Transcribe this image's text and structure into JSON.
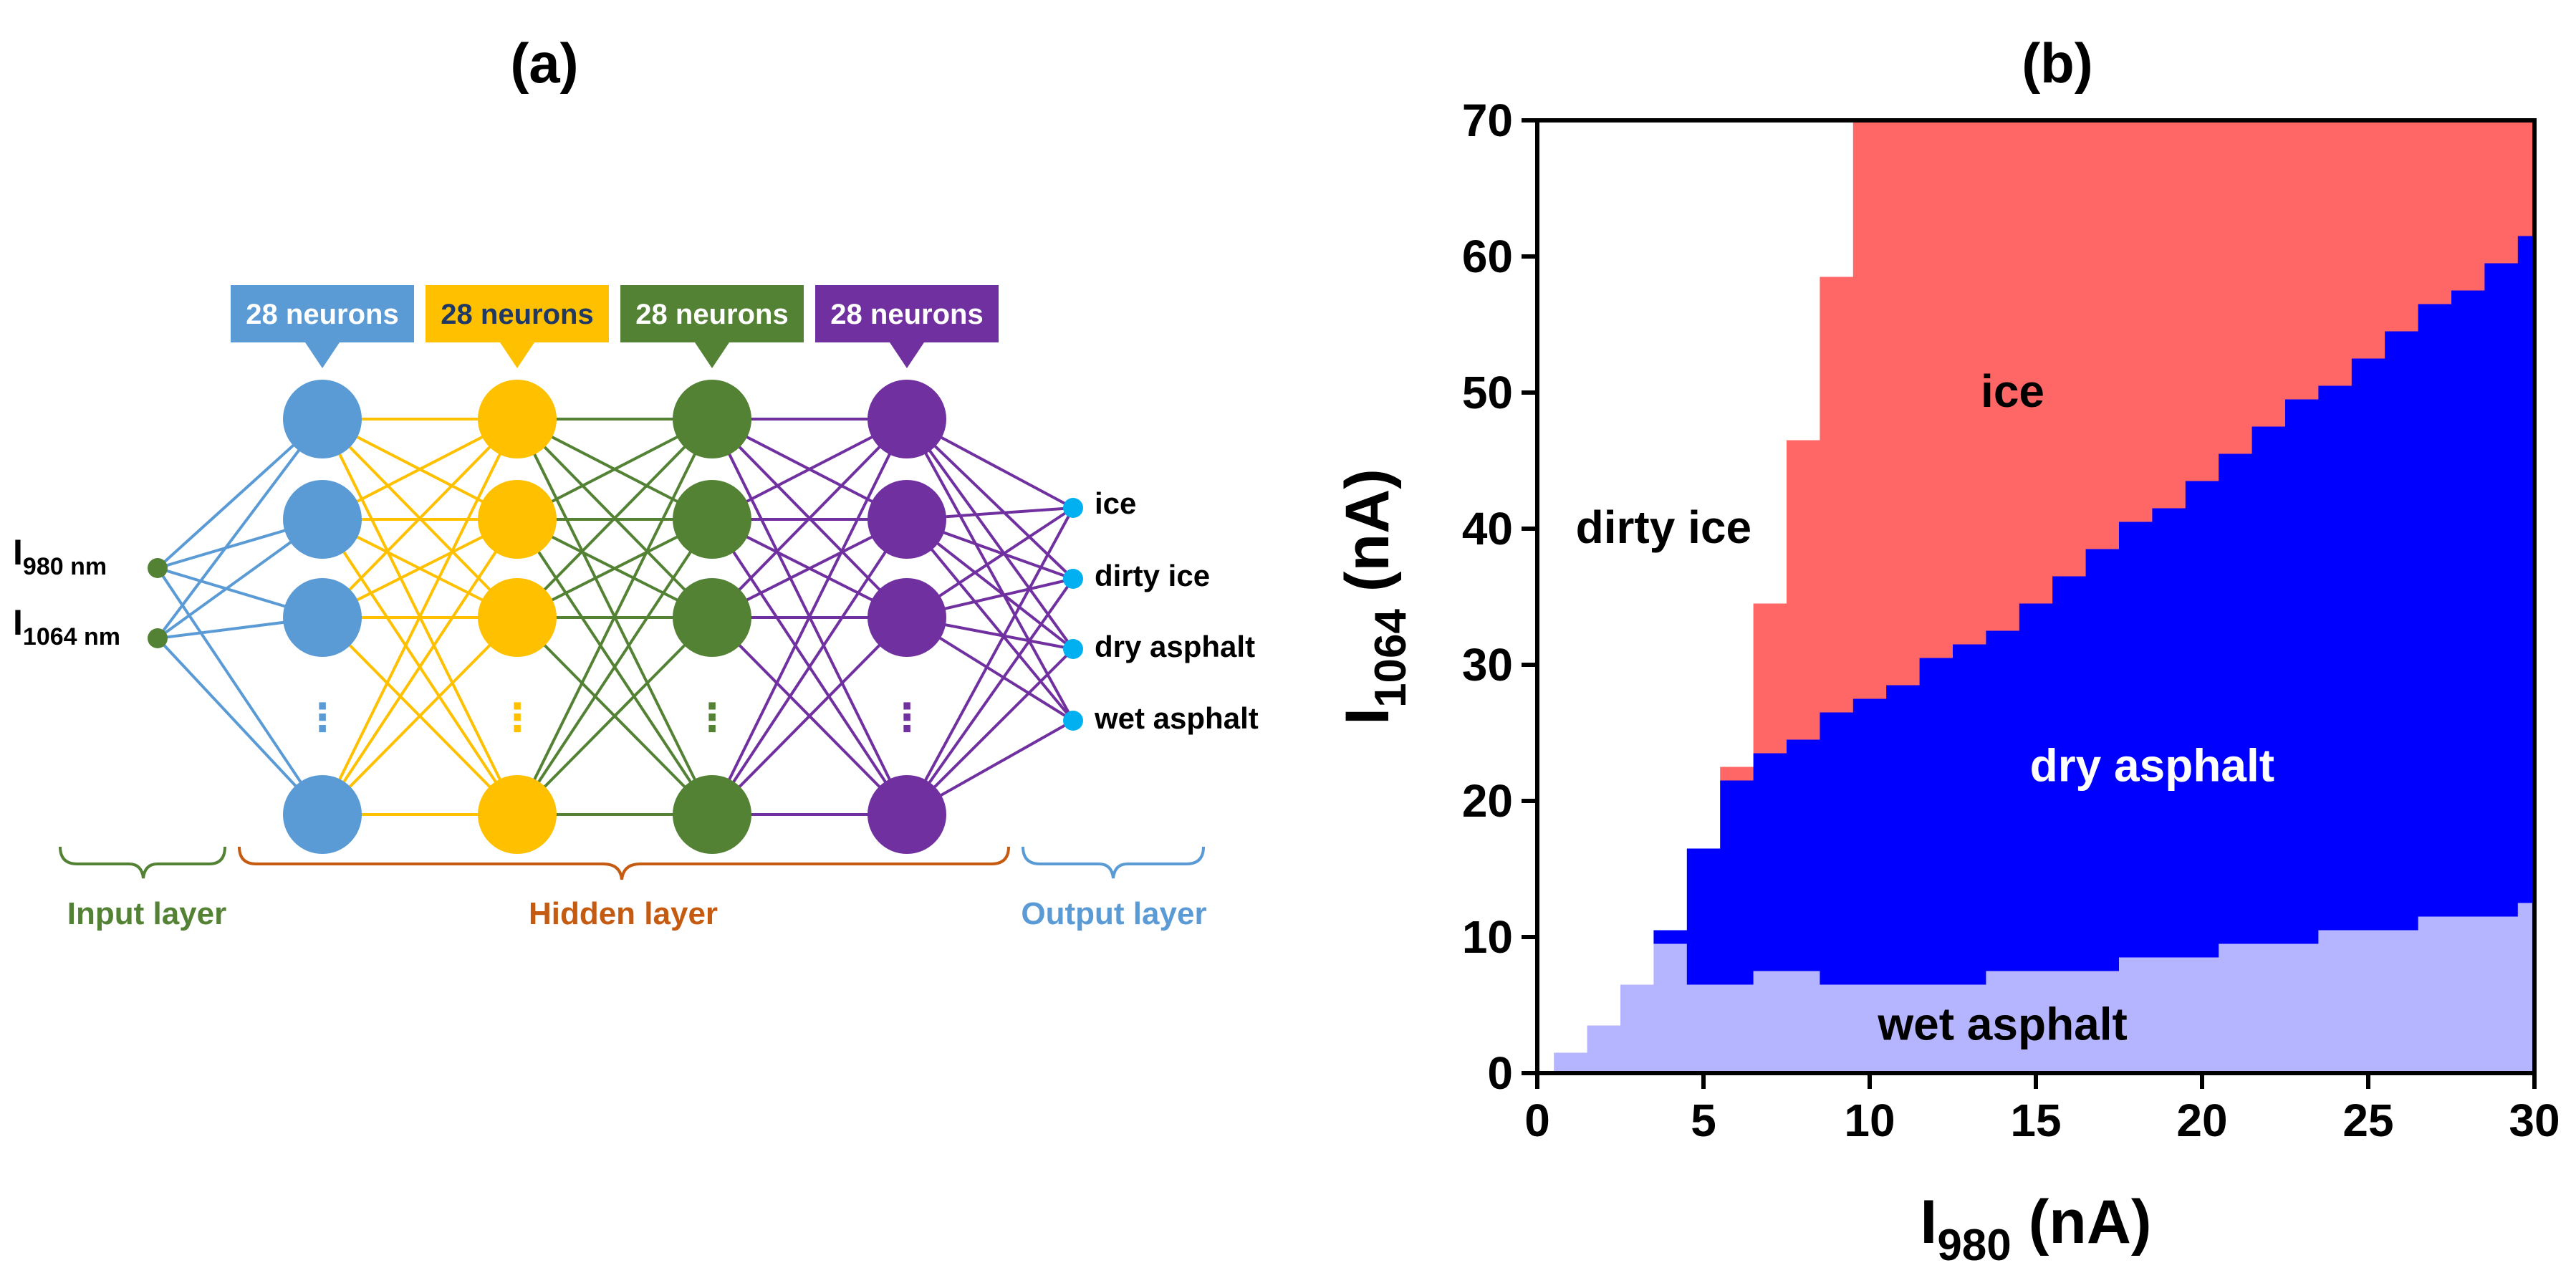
{
  "panel_a": {
    "label": "(a)",
    "inputs": [
      {
        "main": "I",
        "sub": "980 nm"
      },
      {
        "main": "I",
        "sub": "1064 nm"
      }
    ],
    "hidden_layers": [
      {
        "badge": "28 neurons",
        "color": "#5B9BD5",
        "badge_text_color": "#FFFFFF"
      },
      {
        "badge": "28 neurons",
        "color": "#FFC000",
        "badge_text_color": "#1F3864"
      },
      {
        "badge": "28 neurons",
        "color": "#548235",
        "badge_text_color": "#FFFFFF"
      },
      {
        "badge": "28 neurons",
        "color": "#7030A0",
        "badge_text_color": "#FFFFFF"
      }
    ],
    "ellipsis": "⋮",
    "outputs": [
      "ice",
      "dirty ice",
      "dry asphalt",
      "wet asphalt"
    ],
    "layer_labels": {
      "input": "Input layer",
      "hidden": "Hidden layer",
      "output": "Output layer"
    },
    "colors": {
      "input": "#548235",
      "hidden_brace": "#C55A11",
      "output": "#5B9BD5",
      "output_node": "#00B0F0"
    }
  },
  "panel_b": {
    "label": "(b)",
    "chart_data": {
      "type": "heatmap",
      "title": "",
      "xlabel": {
        "main": "I",
        "sub": "980",
        "unit": " (nA)"
      },
      "ylabel": {
        "main": "I",
        "sub": "1064",
        "unit": " (nA)"
      },
      "xlim": [
        0,
        30
      ],
      "ylim": [
        0,
        70
      ],
      "xticks": [
        0,
        5,
        10,
        15,
        20,
        25,
        30
      ],
      "yticks": [
        0,
        10,
        20,
        30,
        40,
        50,
        60,
        70
      ],
      "colors": {
        "ice": "#FF6666",
        "dry asphalt": "#0000FF",
        "wet asphalt": "#B4B4FF",
        "dirty ice": "#FFFFFF"
      },
      "class_order": [
        "wet asphalt",
        "dry asphalt",
        "ice",
        "dirty ice"
      ],
      "columns": [
        {
          "x0": 0,
          "x1": 0.5,
          "wet": 0,
          "dry": 0,
          "ice": 0
        },
        {
          "x0": 0.5,
          "x1": 1.5,
          "wet": 1.5,
          "dry": 1.5,
          "ice": 1.5
        },
        {
          "x0": 1.5,
          "x1": 2.5,
          "wet": 3.5,
          "dry": 3.5,
          "ice": 3.5
        },
        {
          "x0": 2.5,
          "x1": 3.5,
          "wet": 6.5,
          "dry": 6.5,
          "ice": 6.5
        },
        {
          "x0": 3.5,
          "x1": 4.5,
          "wet": 9.5,
          "dry": 10.5,
          "ice": 10.5
        },
        {
          "x0": 4.5,
          "x1": 5.5,
          "wet": 6.5,
          "dry": 16.5,
          "ice": 16.5
        },
        {
          "x0": 5.5,
          "x1": 6.5,
          "wet": 6.5,
          "dry": 21.5,
          "ice": 22.5
        },
        {
          "x0": 6.5,
          "x1": 7.5,
          "wet": 7.5,
          "dry": 23.5,
          "ice": 34.5
        },
        {
          "x0": 7.5,
          "x1": 8.5,
          "wet": 7.5,
          "dry": 24.5,
          "ice": 46.5
        },
        {
          "x0": 8.5,
          "x1": 9.5,
          "wet": 6.5,
          "dry": 26.5,
          "ice": 58.5
        },
        {
          "x0": 9.5,
          "x1": 10.5,
          "wet": 6.5,
          "dry": 27.5,
          "ice": 70
        },
        {
          "x0": 10.5,
          "x1": 11.5,
          "wet": 6.5,
          "dry": 28.5,
          "ice": 70
        },
        {
          "x0": 11.5,
          "x1": 12.5,
          "wet": 6.5,
          "dry": 30.5,
          "ice": 70
        },
        {
          "x0": 12.5,
          "x1": 13.5,
          "wet": 6.5,
          "dry": 31.5,
          "ice": 70
        },
        {
          "x0": 13.5,
          "x1": 14.5,
          "wet": 7.5,
          "dry": 32.5,
          "ice": 70
        },
        {
          "x0": 14.5,
          "x1": 15.5,
          "wet": 7.5,
          "dry": 34.5,
          "ice": 70
        },
        {
          "x0": 15.5,
          "x1": 16.5,
          "wet": 7.5,
          "dry": 36.5,
          "ice": 70
        },
        {
          "x0": 16.5,
          "x1": 17.5,
          "wet": 7.5,
          "dry": 38.5,
          "ice": 70
        },
        {
          "x0": 17.5,
          "x1": 18.5,
          "wet": 8.5,
          "dry": 40.5,
          "ice": 70
        },
        {
          "x0": 18.5,
          "x1": 19.5,
          "wet": 8.5,
          "dry": 41.5,
          "ice": 70
        },
        {
          "x0": 19.5,
          "x1": 20.5,
          "wet": 8.5,
          "dry": 43.5,
          "ice": 70
        },
        {
          "x0": 20.5,
          "x1": 21.5,
          "wet": 9.5,
          "dry": 45.5,
          "ice": 70
        },
        {
          "x0": 21.5,
          "x1": 22.5,
          "wet": 9.5,
          "dry": 47.5,
          "ice": 70
        },
        {
          "x0": 22.5,
          "x1": 23.5,
          "wet": 9.5,
          "dry": 49.5,
          "ice": 70
        },
        {
          "x0": 23.5,
          "x1": 24.5,
          "wet": 10.5,
          "dry": 50.5,
          "ice": 70
        },
        {
          "x0": 24.5,
          "x1": 25.5,
          "wet": 10.5,
          "dry": 52.5,
          "ice": 70
        },
        {
          "x0": 25.5,
          "x1": 26.5,
          "wet": 10.5,
          "dry": 54.5,
          "ice": 70
        },
        {
          "x0": 26.5,
          "x1": 27.5,
          "wet": 11.5,
          "dry": 56.5,
          "ice": 70
        },
        {
          "x0": 27.5,
          "x1": 28.5,
          "wet": 11.5,
          "dry": 57.5,
          "ice": 70
        },
        {
          "x0": 28.5,
          "x1": 29.5,
          "wet": 11.5,
          "dry": 59.5,
          "ice": 70
        },
        {
          "x0": 29.5,
          "x1": 30,
          "wet": 12.5,
          "dry": 61.5,
          "ice": 70
        }
      ],
      "region_labels": [
        {
          "text": "ice",
          "x": 14.3,
          "y": 50,
          "color": "#000000"
        },
        {
          "text": "dirty ice",
          "x": 3.8,
          "y": 40,
          "color": "#000000"
        },
        {
          "text": "dry asphalt",
          "x": 18.5,
          "y": 22.5,
          "color": "#FFFFFF"
        },
        {
          "text": "wet asphalt",
          "x": 14,
          "y": 3.5,
          "color": "#000000"
        }
      ]
    }
  }
}
